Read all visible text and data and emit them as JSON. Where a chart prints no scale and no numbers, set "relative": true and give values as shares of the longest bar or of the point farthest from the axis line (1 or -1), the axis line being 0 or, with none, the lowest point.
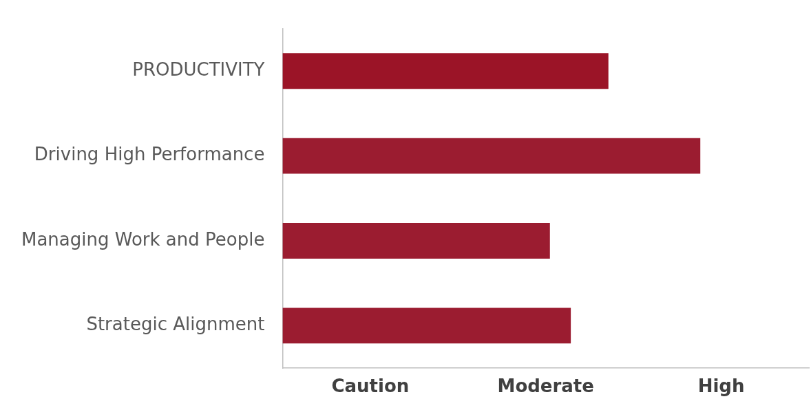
{
  "chart_data": {
    "type": "bar",
    "orientation": "horizontal",
    "relative": true,
    "categories": [
      "PRODUCTIVITY",
      "Driving High Performance",
      "Managing Work and People",
      "Strategic Alignment"
    ],
    "values": [
      0.78,
      1.0,
      0.64,
      0.69
    ],
    "colors": [
      "#9b1427",
      "#9b1c30",
      "#9b1c30",
      "#9b1c30"
    ],
    "annotations": [
      "Caution",
      "Moderate",
      "High"
    ],
    "grid": false,
    "legend": false
  }
}
